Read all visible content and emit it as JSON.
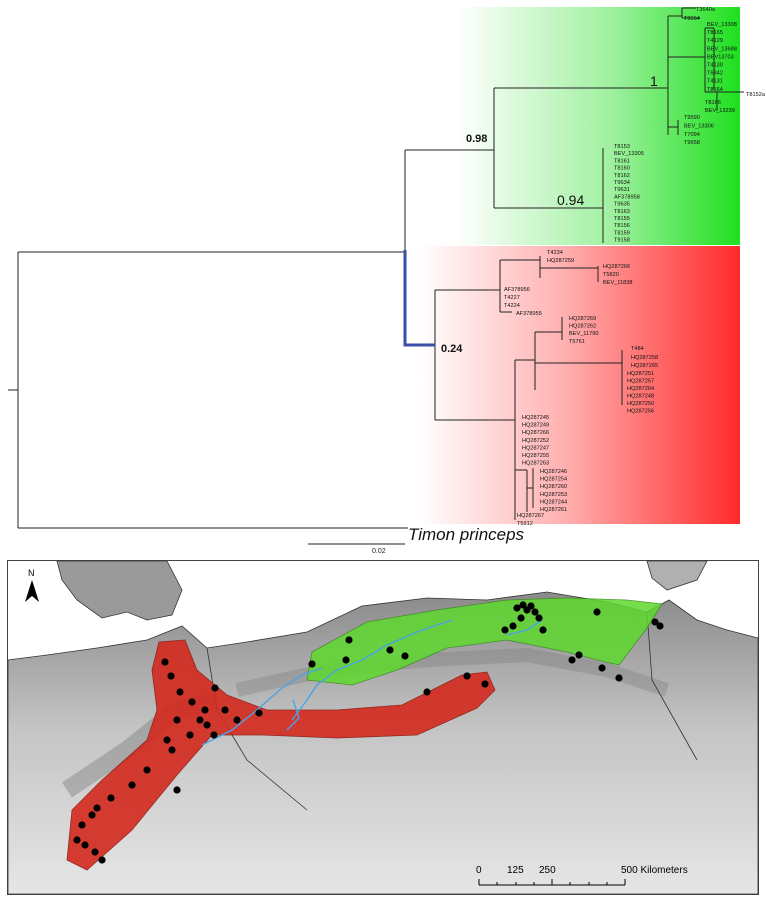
{
  "tree": {
    "supports": {
      "green_clade": "0.98",
      "green_sub_a": "1",
      "green_sub_b": "0.94",
      "red_clade": "0.24"
    },
    "outgroup": "Timon princeps",
    "scale_label": "0.02",
    "clade_colors": {
      "green": "#2ee82e",
      "red": "#ff2e2e"
    },
    "leaves": {
      "g1a": [
        "T3640a",
        "T9554"
      ],
      "g1b": [
        "BEV_13308",
        "T8165",
        "T4129",
        "BEV_13688",
        "BEV13703",
        "T4130",
        "T6842",
        "T4131",
        "T8164"
      ],
      "g1c": [
        "T8152a",
        "T8166",
        "BEV_13239"
      ],
      "g1d": [
        "T9590",
        "BEV_13306",
        "T7094",
        "T9658"
      ],
      "g2": [
        "T8153",
        "BEV_13305",
        "T8161",
        "T8160",
        "T8162",
        "T9634",
        "T9631",
        "AF378958",
        "T9635",
        "T8163",
        "T8155",
        "T8156",
        "T8159",
        "T9158"
      ],
      "r1a": [
        "T4234",
        "HQ287259"
      ],
      "r1b": [
        "HQ287266",
        "T5820",
        "BEV_11838"
      ],
      "r1c": [
        "AF378956",
        "T4227",
        "T4224",
        "AF378955"
      ],
      "r2a": [
        "HQ287269",
        "HQ287262",
        "BEV_11790",
        "T5761"
      ],
      "r2b": [
        "T484",
        "HQ287258",
        "HQ287265"
      ],
      "r2c": [
        "HQ287251",
        "HQ287257",
        "HQ287264",
        "HQ287248",
        "HQ287250",
        "HQ287256"
      ],
      "r3a": [
        "HQ287245",
        "HQ287249",
        "HQ287266",
        "HQ287252",
        "HQ287247",
        "HQ287255",
        "HQ287263"
      ],
      "r3b": [
        "HQ287246",
        "HQ287254",
        "HQ287260",
        "HQ287253",
        "HQ287244",
        "HQ287261"
      ],
      "r3c": [
        "HQ287267",
        "T5912"
      ]
    }
  },
  "map": {
    "north_label": "N",
    "scale_ticks": [
      "0",
      "125",
      "250",
      "500 Kilometers"
    ],
    "range_colors": {
      "green": "#5fd92e",
      "red": "#d42a1e",
      "river": "#4aa3e8"
    }
  }
}
